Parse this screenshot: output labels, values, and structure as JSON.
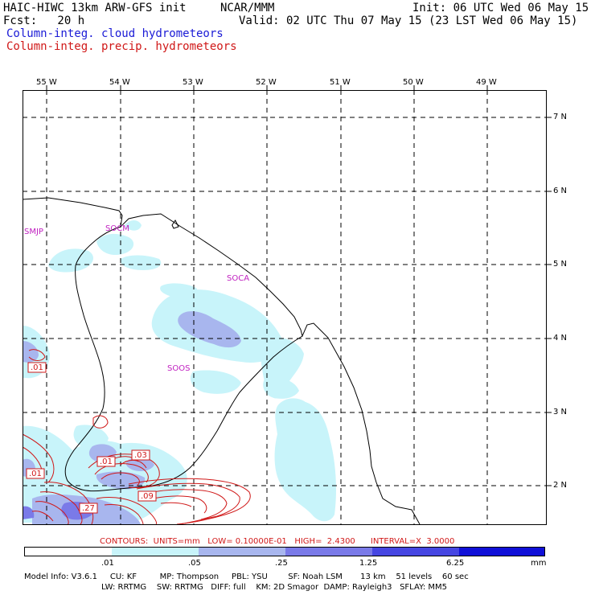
{
  "header": {
    "model_name": "HAIC-HIWC 13km ARW-GFS init",
    "org": "NCAR/MMM",
    "init": "Init: 06 UTC Wed 06 May 15",
    "fcst": "Fcst:   20 h",
    "valid": "Valid: 02 UTC Thu 07 May 15 (23 LST Wed 06 May 15)",
    "field1": "Column-integ. cloud hydrometeors",
    "field2": "Column-integ. precip. hydrometeors"
  },
  "map": {
    "lon_labels": [
      "55 W",
      "54 W",
      "53 W",
      "52 W",
      "51 W",
      "50 W",
      "49 W"
    ],
    "lat_labels": [
      "7 N",
      "6 N",
      "5 N",
      "4 N",
      "3 N",
      "2 N"
    ],
    "stations": [
      "SMJP",
      "SOCM",
      "SOCA",
      "SOOS"
    ],
    "contour_labels": [
      ".01",
      ".01",
      ".01",
      ".03",
      ".09",
      ".27"
    ]
  },
  "contour_info": "CONTOURS:  UNITS=mm   LOW= 0.10000E-01   HIGH=  2.4300      INTERVAL=X  3.0000",
  "colorbar": {
    "ticks": [
      ".01",
      ".05",
      ".25",
      "1.25",
      "6.25"
    ],
    "unit": "mm",
    "colors": [
      "#ffffff",
      "#c8f4fa",
      "#a8b6ee",
      "#7a7ae8",
      "#4646e2",
      "#1010d8"
    ]
  },
  "model_info": {
    "line1": "Model Info: V3.6.1     CU: KF         MP: Thompson     PBL: YSU        SF: Noah LSM       13 km    51 levels    60 sec",
    "line2": "LW: RRTMG    SW: RRTMG   DIFF: full    KM: 2D Smagor  DAMP: Rayleigh3   SFLAY: MM5"
  }
}
